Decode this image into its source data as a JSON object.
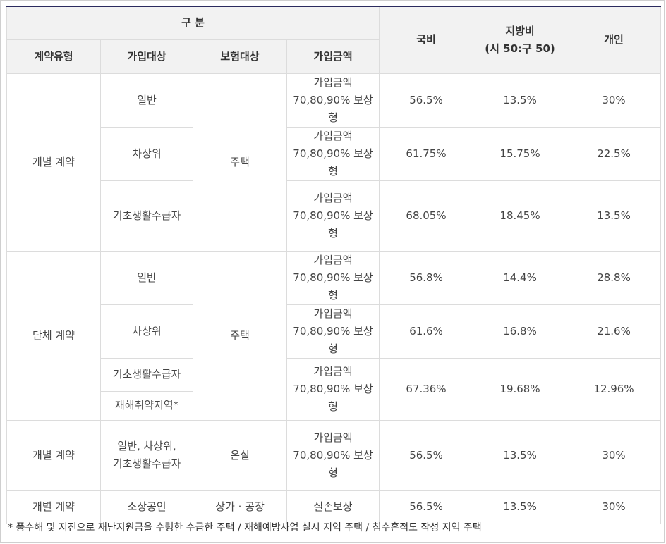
{
  "header": {
    "group": "구 분",
    "contract_type": "계약유형",
    "target": "가입대상",
    "insured": "보험대상",
    "amount": "가입금액",
    "national": "국비",
    "local_l1": "지방비",
    "local_l2": "(시 50:구 50)",
    "personal": "개인"
  },
  "amount_l1": "가입금액",
  "amount_l2": "70,80,90% 보상형",
  "rows": {
    "ind": {
      "type": "개별 계약",
      "insured": "주택",
      "r1": {
        "target": "일반",
        "national": "56.5%",
        "local": "13.5%",
        "personal": "30%"
      },
      "r2": {
        "target": "차상위",
        "national": "61.75%",
        "local": "15.75%",
        "personal": "22.5%"
      },
      "r3": {
        "target": "기초생활수급자",
        "national": "68.05%",
        "local": "18.45%",
        "personal": "13.5%"
      }
    },
    "grp": {
      "type": "단체 계약",
      "insured": "주택",
      "r1": {
        "target": "일반",
        "national": "56.8%",
        "local": "14.4%",
        "personal": "28.8%"
      },
      "r2": {
        "target": "차상위",
        "national": "61.6%",
        "local": "16.8%",
        "personal": "21.6%"
      },
      "r3": {
        "target": "기초생활수급자",
        "target2": "재해취약지역*",
        "national": "67.36%",
        "local": "19.68%",
        "personal": "12.96%"
      }
    },
    "green": {
      "type": "개별 계약",
      "target_l1": "일반, 차상위,",
      "target_l2": "기초생활수급자",
      "insured": "온실",
      "national": "56.5%",
      "local": "13.5%",
      "personal": "30%"
    },
    "biz": {
      "type": "개별 계약",
      "target": "소상공인",
      "insured": "상가 · 공장",
      "amount": "실손보상",
      "national": "56.5%",
      "local": "13.5%",
      "personal": "30%"
    }
  },
  "footnote": "*  풍수해 및 지진으로 재난지원금을 수령한 수급한 주택 / 재해예방사업 실시 지역 주택 / 침수흔적도 작성 지역 주택"
}
